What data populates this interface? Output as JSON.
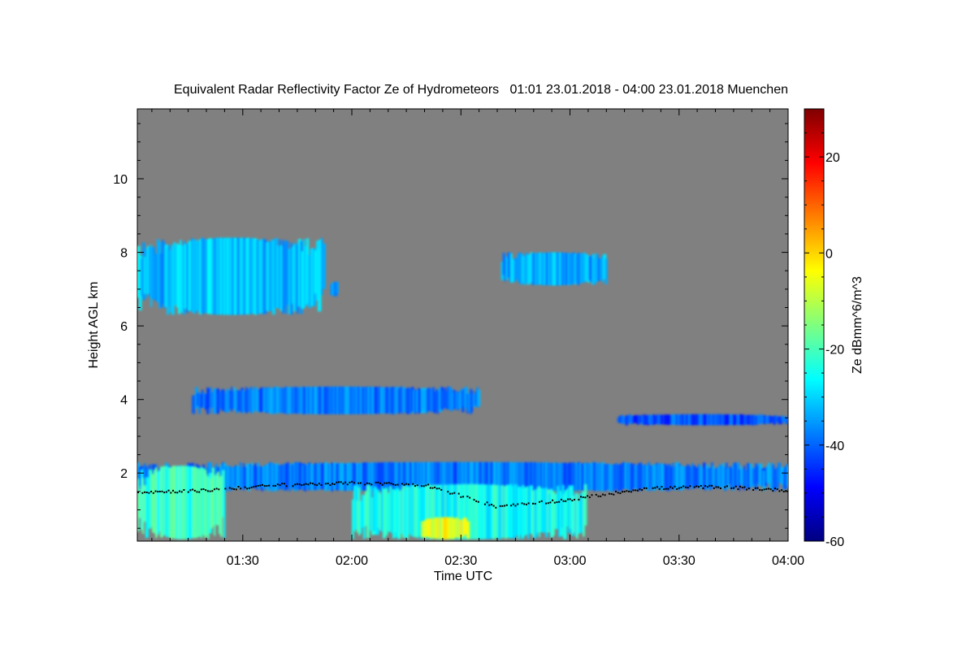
{
  "chart_data": {
    "type": "heatmap",
    "title": "Equivalent Radar Reflectivity Factor Ze of Hydrometeors   01:01 23.01.2018 - 04:00 23.01.2018 Muenchen",
    "xlabel": "Time UTC",
    "ylabel": "Height AGL km",
    "colorbar_label": "Ze dBmm^6/m^3",
    "xlim": [
      "01:01",
      "04:00"
    ],
    "ylim": [
      0.15,
      11.9
    ],
    "x_ticks": [
      "01:30",
      "02:00",
      "02:30",
      "03:00",
      "03:30",
      "04:00"
    ],
    "y_ticks": [
      2,
      4,
      6,
      8,
      10
    ],
    "colorbar_range": [
      -60,
      30
    ],
    "colorbar_ticks": [
      -60,
      -40,
      -20,
      0,
      20
    ],
    "colormap": "jet",
    "background_color": "#808080",
    "echo_regions": [
      {
        "t_start": "01:01",
        "t_end": "01:52",
        "h_bottom": 6.3,
        "h_top": 8.4,
        "ze_dbz": -32,
        "kind": "ice cloud"
      },
      {
        "t_start": "01:54",
        "t_end": "01:56",
        "h_bottom": 6.8,
        "h_top": 7.2,
        "ze_dbz": -35,
        "kind": "ice cloud"
      },
      {
        "t_start": "02:41",
        "t_end": "03:10",
        "h_bottom": 7.1,
        "h_top": 8.0,
        "ze_dbz": -34,
        "kind": "ice cloud"
      },
      {
        "t_start": "01:16",
        "t_end": "02:35",
        "h_bottom": 3.6,
        "h_top": 4.35,
        "ze_dbz": -38,
        "kind": "thin layer"
      },
      {
        "t_start": "03:13",
        "t_end": "04:00",
        "h_bottom": 3.3,
        "h_top": 3.6,
        "ze_dbz": -42,
        "kind": "thin layer"
      },
      {
        "t_start": "01:01",
        "t_end": "04:00",
        "h_bottom": 1.5,
        "h_top": 2.3,
        "ze_dbz": -38,
        "kind": "low cloud"
      },
      {
        "t_start": "01:01",
        "t_end": "01:25",
        "h_bottom": 0.2,
        "h_top": 2.2,
        "ze_dbz": -22,
        "kind": "precipitation"
      },
      {
        "t_start": "02:00",
        "t_end": "03:04",
        "h_bottom": 0.2,
        "h_top": 1.7,
        "ze_dbz": -25,
        "kind": "precipitation"
      },
      {
        "t_start": "02:19",
        "t_end": "02:32",
        "h_bottom": 0.2,
        "h_top": 0.8,
        "ze_dbz": -5,
        "kind": "precipitation core"
      }
    ],
    "cloud_base_heights": {
      "t": [
        "01:01",
        "01:20",
        "01:40",
        "02:00",
        "02:20",
        "02:40",
        "03:00",
        "03:20",
        "03:40",
        "04:00"
      ],
      "h": [
        1.5,
        1.55,
        1.7,
        1.75,
        1.7,
        1.1,
        1.3,
        1.6,
        1.65,
        1.55
      ]
    }
  }
}
